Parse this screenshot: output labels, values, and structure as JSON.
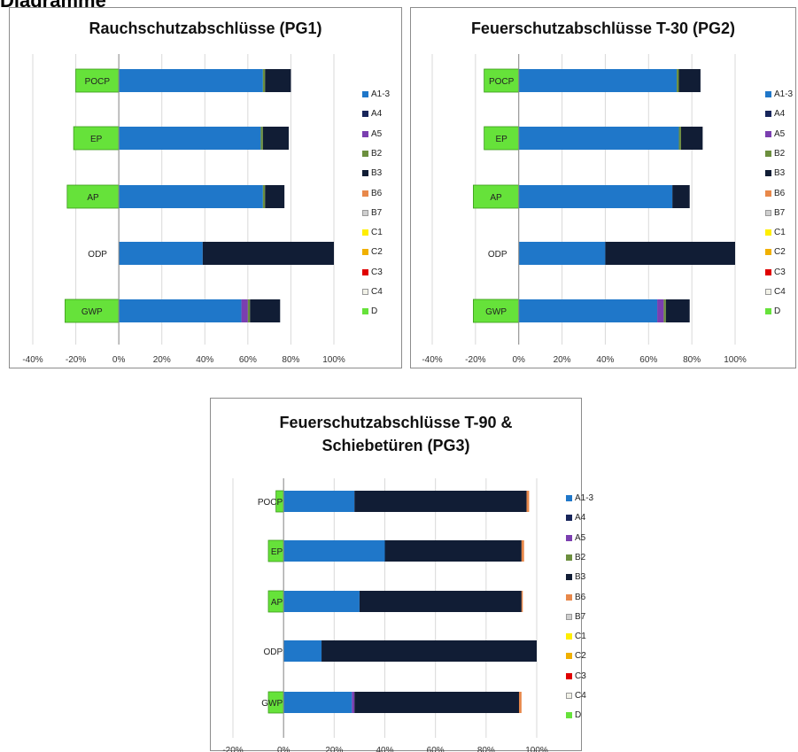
{
  "page": {
    "heading": "Diagramme"
  },
  "stages": [
    {
      "key": "A1-3",
      "label": "A1-3",
      "color": "#1f77c9"
    },
    {
      "key": "A4",
      "label": "A4",
      "color": "#17255a"
    },
    {
      "key": "A5",
      "label": "A5",
      "color": "#7b3fb0"
    },
    {
      "key": "B2",
      "label": "B2",
      "color": "#6c8f3e"
    },
    {
      "key": "B3",
      "label": "B3",
      "color": "#111d35"
    },
    {
      "key": "B6",
      "label": "B6",
      "color": "#e8884a"
    },
    {
      "key": "B7",
      "label": "B7",
      "color": "#cfcfcf"
    },
    {
      "key": "C1",
      "label": "C1",
      "color": "#ffee00"
    },
    {
      "key": "C2",
      "label": "C2",
      "color": "#f0b000"
    },
    {
      "key": "C3",
      "label": "C3",
      "color": "#e00000"
    },
    {
      "key": "C4",
      "label": "C4",
      "color": "#f2f2e8"
    },
    {
      "key": "D",
      "label": "D",
      "color": "#66e23a"
    }
  ],
  "chart_data": [
    {
      "type": "bar",
      "orientation": "horizontal",
      "stacked": true,
      "title": "Rauchschutzabschlüsse (PG1)",
      "categories": [
        "POCP",
        "EP",
        "AP",
        "ODP",
        "GWP"
      ],
      "xlim": [
        -40,
        100
      ],
      "xticks": [
        "-40%",
        "-20%",
        "0%",
        "20%",
        "40%",
        "60%",
        "80%",
        "100%"
      ],
      "grid": true,
      "legend_position": "right",
      "series": [
        {
          "name": "A1-3",
          "values": [
            67,
            66,
            67,
            39,
            57
          ]
        },
        {
          "name": "A4",
          "values": [
            0,
            0,
            0,
            0,
            0
          ]
        },
        {
          "name": "A5",
          "values": [
            0,
            0,
            0,
            0,
            3
          ]
        },
        {
          "name": "B2",
          "values": [
            1,
            1,
            1,
            0,
            1
          ]
        },
        {
          "name": "B3",
          "values": [
            12,
            12,
            9,
            61,
            14
          ]
        },
        {
          "name": "B6",
          "values": [
            0,
            0,
            0,
            0,
            0
          ]
        },
        {
          "name": "B7",
          "values": [
            0,
            0,
            0,
            0,
            0
          ]
        },
        {
          "name": "C1",
          "values": [
            0,
            0,
            0,
            0,
            0
          ]
        },
        {
          "name": "C2",
          "values": [
            0,
            0,
            0,
            0,
            0
          ]
        },
        {
          "name": "C3",
          "values": [
            0,
            0,
            0,
            0,
            0
          ]
        },
        {
          "name": "C4",
          "values": [
            0,
            0,
            0,
            0,
            0
          ]
        },
        {
          "name": "D",
          "values": [
            -20,
            -21,
            -24,
            0,
            -25
          ]
        }
      ]
    },
    {
      "type": "bar",
      "orientation": "horizontal",
      "stacked": true,
      "title": "Feuerschutzabschlüsse T-30 (PG2)",
      "categories": [
        "POCP",
        "EP",
        "AP",
        "ODP",
        "GWP"
      ],
      "xlim": [
        -40,
        100
      ],
      "xticks": [
        "-40%",
        "-20%",
        "0%",
        "20%",
        "40%",
        "60%",
        "80%",
        "100%"
      ],
      "grid": true,
      "legend_position": "right",
      "series": [
        {
          "name": "A1-3",
          "values": [
            73,
            74,
            71,
            40,
            64
          ]
        },
        {
          "name": "A4",
          "values": [
            0,
            0,
            0,
            0,
            0
          ]
        },
        {
          "name": "A5",
          "values": [
            0,
            0,
            0,
            0,
            3
          ]
        },
        {
          "name": "B2",
          "values": [
            1,
            1,
            0,
            0,
            1
          ]
        },
        {
          "name": "B3",
          "values": [
            10,
            10,
            8,
            60,
            11
          ]
        },
        {
          "name": "B6",
          "values": [
            0,
            0,
            0,
            0,
            0
          ]
        },
        {
          "name": "B7",
          "values": [
            0,
            0,
            0,
            0,
            0
          ]
        },
        {
          "name": "C1",
          "values": [
            0,
            0,
            0,
            0,
            0
          ]
        },
        {
          "name": "C2",
          "values": [
            0,
            0,
            0,
            0,
            0
          ]
        },
        {
          "name": "C3",
          "values": [
            0,
            0,
            0,
            0,
            0
          ]
        },
        {
          "name": "C4",
          "values": [
            0,
            0,
            0,
            0,
            0
          ]
        },
        {
          "name": "D",
          "values": [
            -16,
            -16,
            -21,
            0,
            -21
          ]
        }
      ]
    },
    {
      "type": "bar",
      "orientation": "horizontal",
      "stacked": true,
      "title": "Feuerschutzabschlüsse T-90 & Schiebetüren (PG3)",
      "title_lines": [
        "Feuerschutzabschlüsse T-90 &",
        "Schiebetüren (PG3)"
      ],
      "categories": [
        "POCP",
        "EP",
        "AP",
        "ODP",
        "GWP"
      ],
      "xlim": [
        -20,
        100
      ],
      "xticks": [
        "-20%",
        "0%",
        "20%",
        "40%",
        "60%",
        "80%",
        "100%"
      ],
      "grid": true,
      "legend_position": "right",
      "series": [
        {
          "name": "A1-3",
          "values": [
            28,
            40,
            30,
            15,
            27
          ]
        },
        {
          "name": "A4",
          "values": [
            0,
            0,
            0,
            0,
            0
          ]
        },
        {
          "name": "A5",
          "values": [
            0,
            0,
            0,
            0,
            1
          ]
        },
        {
          "name": "B2",
          "values": [
            0,
            0,
            0,
            0,
            0
          ]
        },
        {
          "name": "B3",
          "values": [
            68,
            54,
            64,
            85,
            65
          ]
        },
        {
          "name": "B6",
          "values": [
            1,
            1,
            0.5,
            0,
            1
          ]
        },
        {
          "name": "B7",
          "values": [
            0,
            0,
            0,
            0,
            0
          ]
        },
        {
          "name": "C1",
          "values": [
            0,
            0,
            0,
            0,
            0
          ]
        },
        {
          "name": "C2",
          "values": [
            0,
            0,
            0,
            0,
            0
          ]
        },
        {
          "name": "C3",
          "values": [
            0,
            0,
            0,
            0,
            0
          ]
        },
        {
          "name": "C4",
          "values": [
            0,
            0,
            0,
            0,
            0
          ]
        },
        {
          "name": "D",
          "values": [
            -3,
            -6,
            -6,
            0,
            -6
          ]
        }
      ]
    }
  ]
}
